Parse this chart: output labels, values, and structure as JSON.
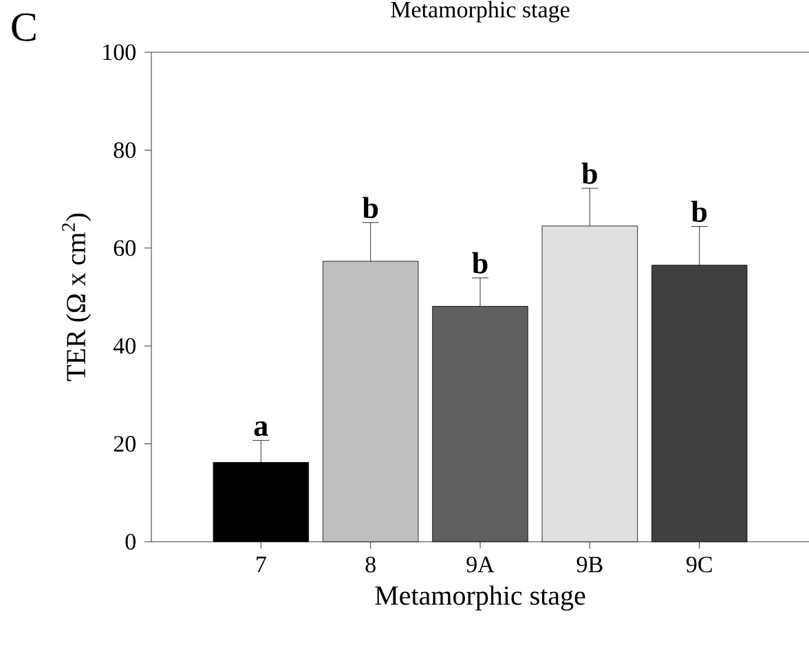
{
  "chart_data": {
    "type": "bar",
    "xlabel": "Metamorphic stage",
    "ylabel": "TER (Ω x cm$^{2}$)",
    "categories": [
      "7",
      "8",
      "9A",
      "9B",
      "9C"
    ],
    "values": [
      16.2,
      57.3,
      48.1,
      64.5,
      56.5
    ],
    "errors": [
      [
        16.2,
        20.7
      ],
      [
        57.3,
        65.2
      ],
      [
        48.1,
        53.9
      ],
      [
        64.5,
        72.2
      ],
      [
        56.5,
        64.4
      ]
    ],
    "colors": [
      "#000000",
      "#bfbfbf",
      "#606060",
      "#e0e0e0",
      "#404040"
    ],
    "ylim": [
      0,
      100
    ],
    "yticks": [
      0,
      20,
      40,
      60,
      80,
      100
    ],
    "grid": false,
    "annotations": [
      "C",
      "Metamorphic stage",
      "a",
      "b",
      "b",
      "b",
      "b"
    ]
  }
}
